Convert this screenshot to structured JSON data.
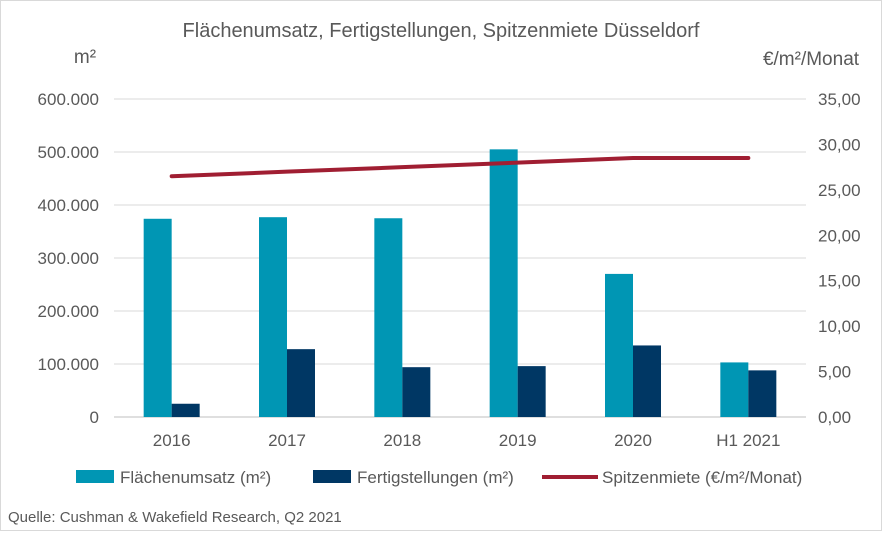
{
  "chart_data": {
    "type": "bar",
    "title": "Flächenumsatz, Fertigstellungen, Spitzenmiete Düsseldorf",
    "ylabel": "m²",
    "y2label": "€/m²/Monat",
    "categories": [
      "2016",
      "2017",
      "2018",
      "2019",
      "2020",
      "H1 2021"
    ],
    "ylim": [
      0,
      600000
    ],
    "y2lim": [
      0,
      35
    ],
    "yticks": [
      "0",
      "100.000",
      "200.000",
      "300.000",
      "400.000",
      "500.000",
      "600.000"
    ],
    "y2ticks": [
      "0,00",
      "5,00",
      "10,00",
      "15,00",
      "20,00",
      "25,00",
      "30,00",
      "35,00"
    ],
    "grid": true,
    "legend_position": "bottom",
    "series": [
      {
        "name": "Flächenumsatz (m²)",
        "type": "bar",
        "axis": "left",
        "color": "#0096b4",
        "values": [
          374000,
          377000,
          375000,
          505000,
          270000,
          103000
        ]
      },
      {
        "name": "Fertigstellungen (m²)",
        "type": "bar",
        "axis": "left",
        "color": "#003764",
        "values": [
          25000,
          128000,
          94000,
          96000,
          135000,
          88000
        ]
      },
      {
        "name": "Spitzenmiete (€/m²/Monat)",
        "type": "line",
        "axis": "right",
        "color": "#a01e32",
        "values": [
          26.5,
          27.0,
          27.5,
          28.0,
          28.5,
          28.5
        ]
      }
    ]
  },
  "source": "Quelle: Cushman & Wakefield Research, Q2 2021"
}
